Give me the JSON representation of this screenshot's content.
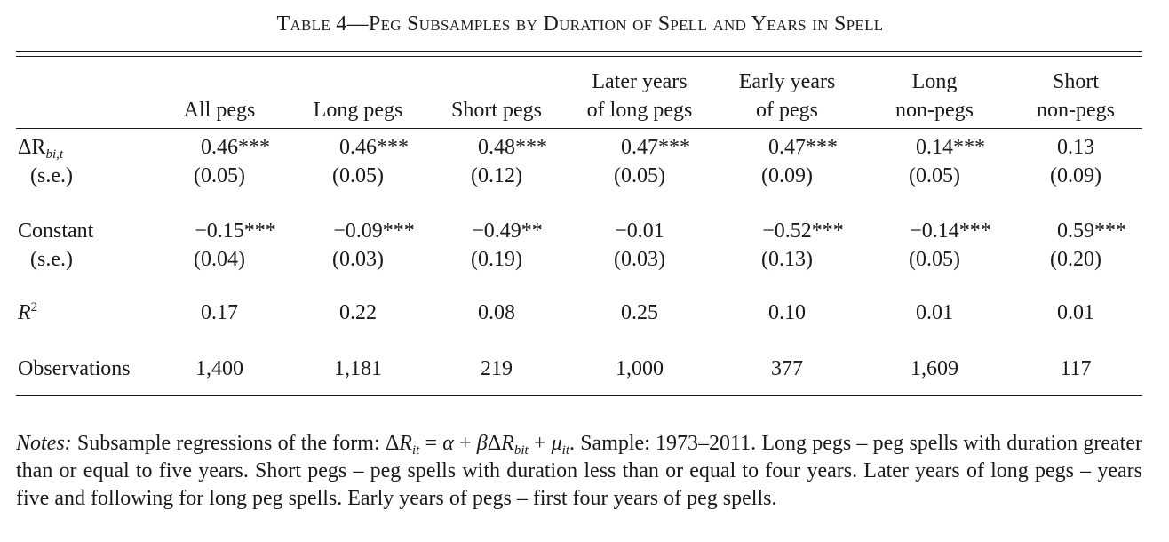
{
  "title": "Table 4—Peg Subsamples by Duration of Spell and Years in Spell",
  "columns": [
    {
      "line1": "",
      "line2": "All pegs"
    },
    {
      "line1": "",
      "line2": "Long pegs"
    },
    {
      "line1": "",
      "line2": "Short pegs"
    },
    {
      "line1": "Later years",
      "line2": "of long pegs"
    },
    {
      "line1": "Early years",
      "line2": "of pegs"
    },
    {
      "line1": "Long",
      "line2": "non-pegs"
    },
    {
      "line1": "Short",
      "line2": "non-pegs"
    }
  ],
  "rows": {
    "delta_r": {
      "label_prefix": "ΔR",
      "label_sub": "bi,t",
      "values": [
        "0.46***",
        "0.46***",
        "0.48***",
        "0.47***",
        "0.47***",
        "0.14***",
        "0.13"
      ]
    },
    "delta_r_se": {
      "label": "(s.e.)",
      "values": [
        "(0.05)",
        "(0.05)",
        "(0.12)",
        "(0.05)",
        "(0.09)",
        "(0.05)",
        "(0.09)"
      ]
    },
    "constant": {
      "label": "Constant",
      "values": [
        "−0.15***",
        "−0.09***",
        "−0.49**",
        "−0.01",
        "−0.52***",
        "−0.14***",
        "0.59***"
      ]
    },
    "constant_se": {
      "label": "(s.e.)",
      "values": [
        "(0.04)",
        "(0.03)",
        "(0.19)",
        "(0.03)",
        "(0.13)",
        "(0.05)",
        "(0.20)"
      ]
    },
    "r2": {
      "label_base": "R",
      "label_sup": "2",
      "values": [
        "0.17",
        "0.22",
        "0.08",
        "0.25",
        "0.10",
        "0.01",
        "0.01"
      ]
    },
    "observations": {
      "label": "Observations",
      "values": [
        "1,400",
        "1,181",
        "219",
        "1,000",
        "377",
        "1,609",
        "117"
      ]
    }
  },
  "notes": {
    "label": "Notes:",
    "formula_intro": "Subsample regressions of the form:",
    "formula": "ΔR_it = α + βΔR_bit + μ_it",
    "text": "Sample: 1973–2011. Long pegs – peg spells with duration greater than or equal to five years. Short pegs – peg spells with duration less than or equal to four years. Later years of long pegs – years five and following for long peg spells. Early years of pegs – first four years of peg spells."
  }
}
